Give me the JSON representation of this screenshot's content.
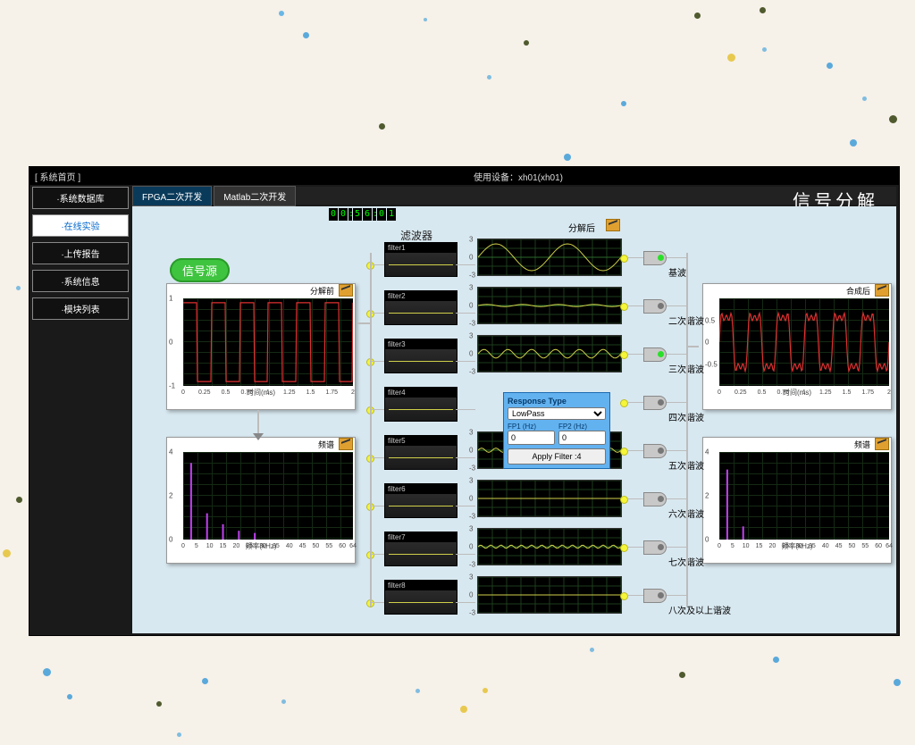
{
  "window": {
    "title_left": "[ 系统首页 ]",
    "title_center": "使用设备：xh01(xh01)",
    "page_title": "信号分解"
  },
  "sidebar": {
    "items": [
      {
        "label": "·系统数据库",
        "active": false
      },
      {
        "label": "·在线实验",
        "active": true
      },
      {
        "label": "·上传报告",
        "active": false
      },
      {
        "label": "·系统信息",
        "active": false
      },
      {
        "label": "·模块列表",
        "active": false
      }
    ]
  },
  "tabs": [
    {
      "label": "FPGA二次开发",
      "active": true
    },
    {
      "label": "Matlab二次开发",
      "active": false
    }
  ],
  "timer": {
    "digits": [
      "0",
      "0",
      "5",
      "6",
      "0",
      "1"
    ]
  },
  "source_label": "信号源",
  "filter_col": {
    "title": "滤波器",
    "items": [
      "filter1",
      "filter2",
      "filter3",
      "filter4",
      "filter5",
      "filter6",
      "filter7",
      "filter8"
    ]
  },
  "harmonic_title": "分解后",
  "harmonics": [
    {
      "label": "基波",
      "ampl": 2.5,
      "freq": 6,
      "led": "#2adf2a"
    },
    {
      "label": "二次谐波",
      "ampl": 0.2,
      "freq": 12,
      "led": "#777"
    },
    {
      "label": "三次谐波",
      "ampl": 0.8,
      "freq": 18,
      "led": "#2adf2a"
    },
    {
      "label": "四次谐波",
      "ampl": 0,
      "freq": 24,
      "led": "#777"
    },
    {
      "label": "五次谐波",
      "ampl": 0.4,
      "freq": 30,
      "led": "#777"
    },
    {
      "label": "六次谐波",
      "ampl": 0,
      "freq": 36,
      "led": "#777"
    },
    {
      "label": "七次谐波",
      "ampl": 0.3,
      "freq": 42,
      "led": "#777"
    },
    {
      "label": "八次及以上谐波",
      "ampl": 0,
      "freq": 48,
      "led": "#777"
    }
  ],
  "cfg": {
    "title": "Response Type",
    "type": "LowPass",
    "fp1_label": "FP1 (Hz)",
    "fp2_label": "FP2 (Hz)",
    "fp1": "0",
    "fp2": "0",
    "apply": "Apply Filter :4"
  },
  "source_scope": {
    "title": "分解前",
    "xlabel": "时间(ms)",
    "ylabel": "",
    "ylim": [
      -1,
      1
    ],
    "yticks": [
      -1,
      0,
      1
    ],
    "xlim": [
      0,
      2
    ],
    "xticks": [
      0,
      0.25,
      0.5,
      0.75,
      1,
      1.25,
      1.5,
      1.75,
      2
    ],
    "series": {
      "color": "#e03030",
      "type": "square",
      "periods": 6,
      "amplitude": 0.9
    }
  },
  "spectrum_scope": {
    "title": "频谱",
    "xlabel": "频率(kHz)",
    "ylim": [
      0,
      4
    ],
    "yticks": [
      0,
      2,
      4
    ],
    "xlim": [
      0,
      64
    ],
    "xticks": [
      0,
      5,
      10,
      15,
      20,
      25,
      30,
      35,
      40,
      45,
      50,
      55,
      60,
      64
    ],
    "bars": [
      {
        "x": 3,
        "h": 3.5
      },
      {
        "x": 9,
        "h": 1.2
      },
      {
        "x": 15,
        "h": 0.7
      },
      {
        "x": 21,
        "h": 0.4
      },
      {
        "x": 27,
        "h": 0.3
      }
    ],
    "bar_color": "#c040f0"
  },
  "recon_scope": {
    "title": "合成后",
    "xlabel": "时间(ms)",
    "ylim": [
      -1,
      1
    ],
    "yticks": [
      -0.5,
      0,
      0.5
    ],
    "xlim": [
      0,
      2
    ],
    "xticks": [
      0,
      0.25,
      0.5,
      0.75,
      1,
      1.25,
      1.5,
      1.75,
      2
    ],
    "series": {
      "color": "#e03030",
      "periods": 6,
      "amplitude": 0.85
    }
  },
  "recon_spectrum": {
    "title": "频谱",
    "xlabel": "频率(kHz)",
    "ylim": [
      0,
      4
    ],
    "yticks": [
      0,
      2,
      4
    ],
    "xlim": [
      0,
      64
    ],
    "xticks": [
      0,
      5,
      10,
      15,
      20,
      25,
      30,
      35,
      40,
      45,
      50,
      55,
      60,
      64
    ],
    "bars": [
      {
        "x": 3,
        "h": 3.2
      },
      {
        "x": 9,
        "h": 0.6
      }
    ],
    "bar_color": "#c040f0"
  },
  "colors": {
    "canvas": "#d8e8f0",
    "scope_bg": "#000",
    "grid": "#1d3d1d",
    "yellow": "#cfcf4a"
  }
}
